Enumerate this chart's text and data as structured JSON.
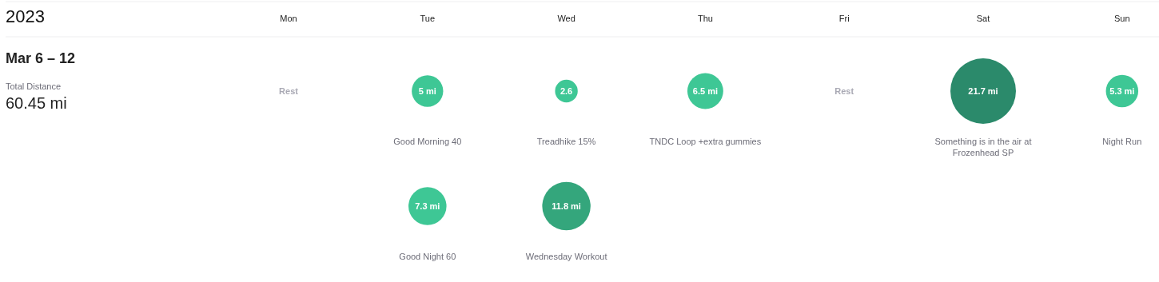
{
  "chart_data": {
    "type": "other",
    "title": "2023",
    "subtitle": "Mar 6 – 12",
    "categories": [
      "Mon",
      "Tue",
      "Wed",
      "Thu",
      "Fri",
      "Sat",
      "Sun"
    ],
    "series": [
      {
        "values": [
          null,
          5,
          2.6,
          6.5,
          null,
          21.7,
          5.3
        ],
        "value_labels": [
          "Rest",
          "5 mi",
          "2.6",
          "6.5 mi",
          "Rest",
          "21.7 mi",
          "5.3 mi"
        ],
        "colors": [
          null,
          "#3ec795",
          "#3ec795",
          "#3ec795",
          null,
          "#2b8a6b",
          "#3ec795"
        ]
      },
      {
        "values": [
          null,
          7.3,
          11.8,
          null,
          null,
          null,
          null
        ],
        "value_labels": [
          null,
          "7.3 mi",
          "11.8 mi",
          null,
          null,
          null,
          null
        ],
        "colors": [
          null,
          "#3ec795",
          "#34a67c",
          null,
          null,
          null,
          null
        ]
      }
    ],
    "annotations": [
      "Total Distance",
      "60.45 mi",
      {
        "text": "Good Morning 40",
        "x": "Tue"
      },
      {
        "text": "Treadhike 15%",
        "x": "Wed"
      },
      {
        "text": "TNDC Loop +extra gummies",
        "x": "Thu"
      },
      {
        "text": "Something is in the air at Frozenhead SP",
        "x": "Sat"
      },
      {
        "text": "Night Run",
        "x": "Sun"
      },
      {
        "text": "Good Night 60",
        "x": "Tue"
      },
      {
        "text": "Wednesday Workout",
        "x": "Wed"
      }
    ]
  }
}
